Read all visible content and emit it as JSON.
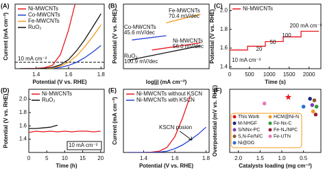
{
  "chart_data": [
    {
      "type": "line",
      "panel_label": "(A)",
      "x_label": "Potential (V vs. RHE)",
      "y_label": "Current (mA cm⁻²)",
      "x": [
        1.3,
        1.4,
        1.45,
        1.5,
        1.55,
        1.6,
        1.65,
        1.7,
        1.75,
        1.8
      ],
      "xlim": [
        1.27,
        1.82
      ],
      "xticks": [
        1.4,
        1.6,
        1.8
      ],
      "ylim": [
        0,
        100
      ],
      "yticks": [],
      "hline": 10,
      "annotations": [
        "10 mA cm⁻²"
      ],
      "legend": "upper left",
      "series": [
        {
          "name": "Ni-MWCNTs",
          "color": "#e8161b",
          "values": [
            0,
            0.5,
            1.5,
            5,
            22,
            60,
            110,
            null,
            null,
            null
          ]
        },
        {
          "name": "Co-MWCNTs",
          "color": "#1f3fd6",
          "values": [
            0,
            0,
            0,
            0.5,
            2,
            5,
            10,
            17,
            26,
            36
          ]
        },
        {
          "name": "Fe-MWCNTs",
          "color": "#f39a1a",
          "values": [
            0,
            0,
            0,
            1,
            4,
            10,
            20,
            34,
            50,
            68
          ]
        },
        {
          "name": "RuO₂",
          "color": "#111111",
          "values": [
            0,
            0,
            0.5,
            2,
            6,
            14,
            28,
            45,
            65,
            85
          ]
        }
      ]
    },
    {
      "type": "line",
      "panel_label": "(B)",
      "x_label": "log|j| (mA cm⁻²)",
      "y_label": "Potential (V vs. RHE)",
      "xlim": [
        0,
        1.5
      ],
      "xticks": [],
      "ylim": [
        1.3,
        1.75
      ],
      "yticks": [],
      "series": [
        {
          "name": "Co-MWCNTs",
          "slope": "45.6 mV/dec",
          "color": "#1f3fd6",
          "x": [
            0.15,
            0.75
          ],
          "values": [
            1.5,
            1.53
          ]
        },
        {
          "name": "Fe-MWCNTs",
          "slope": "70.4 mV/dec",
          "color": "#f39a1a",
          "x": [
            0.75,
            1.35
          ],
          "values": [
            1.62,
            1.68
          ]
        },
        {
          "name": "Ni-MWCNTs",
          "slope": "56.0 mV/dec",
          "color": "#e8161b",
          "x": [
            0.5,
            1.35
          ],
          "values": [
            1.43,
            1.48
          ]
        },
        {
          "name": "RuO₂",
          "slope": "100.9 mV/dec",
          "color": "#111111",
          "x": [
            0.1,
            1.35
          ],
          "values": [
            1.36,
            1.46
          ]
        }
      ]
    },
    {
      "type": "line",
      "panel_label": "(C)",
      "x_label": "Time (s)",
      "y_label": "Potential (V vs. RHE)",
      "x": [
        0,
        450,
        450,
        900,
        900,
        1350,
        1350,
        1800,
        1800,
        2250
      ],
      "xlim": [
        0,
        2300
      ],
      "xticks": [
        0,
        500,
        1000,
        1500,
        2000
      ],
      "ylim": [
        1.38,
        2.07
      ],
      "yticks": [
        {
          "value": 2,
          "label": "2.0"
        },
        1.8,
        1.6,
        1.4
      ],
      "legend": "upper left",
      "annotations": [
        "10 mA cm⁻²",
        "20",
        "50",
        "100",
        "200 mA cm⁻²"
      ],
      "series": [
        {
          "name": "Ni-MWCNTs",
          "color": "#e8161b",
          "values": [
            1.58,
            1.58,
            1.62,
            1.62,
            1.67,
            1.67,
            1.72,
            1.72,
            1.78,
            1.78
          ]
        }
      ]
    },
    {
      "type": "line",
      "panel_label": "(D)",
      "x_label": "Time (h)",
      "y_label": "Potential (V vs. RHE)",
      "xlim": [
        0,
        21
      ],
      "xticks": [
        0,
        5,
        10,
        15,
        20
      ],
      "ylim": [
        1.2,
        2.15
      ],
      "yticks": [
        {
          "value": 2,
          "label": "2.0"
        },
        1.8,
        1.6,
        1.4
      ],
      "legend": "upper left",
      "annotations": [
        "10 mA cm⁻²"
      ],
      "series": [
        {
          "name": "Ni-MWCNTs",
          "color": "#e8161b",
          "x": [
            0,
            2,
            4,
            6,
            8,
            10,
            12,
            14,
            16,
            18,
            20
          ],
          "values": [
            1.5,
            1.52,
            1.51,
            1.52,
            1.51,
            1.52,
            1.51,
            1.52,
            1.52,
            1.51,
            1.52
          ]
        },
        {
          "name": "RuO₂",
          "color": "#111111",
          "x": [
            0,
            2,
            4,
            6,
            8
          ],
          "values": [
            1.56,
            1.56,
            1.57,
            1.58,
            1.61
          ]
        }
      ]
    },
    {
      "type": "line",
      "panel_label": "(E)",
      "x_label": "Potential (V vs. RHE)",
      "y_label": "Current (mA cm⁻²)",
      "x": [
        1.3,
        1.4,
        1.45,
        1.5,
        1.55,
        1.6,
        1.65,
        1.7,
        1.75,
        1.8
      ],
      "xlim": [
        1.27,
        1.82
      ],
      "xticks": [
        1.4,
        1.6,
        1.8
      ],
      "ylim": [
        0,
        100
      ],
      "yticks": [],
      "legend": "upper left",
      "annotations": [
        "KSCN posion"
      ],
      "series": [
        {
          "name": "Ni-MWCNTs without KSCN",
          "color": "#e8161b",
          "values": [
            0,
            0,
            0.5,
            2,
            8,
            25,
            55,
            90,
            null,
            null
          ]
        },
        {
          "name": "Ni-MWCNTs with KSCN",
          "color": "#1f3fd6",
          "values": [
            0,
            0,
            0,
            0.5,
            2,
            6,
            12,
            20,
            29,
            40
          ]
        }
      ]
    },
    {
      "type": "scatter",
      "panel_label": "(F)",
      "x_label": "Catalysts loading (mg cm⁻²)",
      "y_label": "Overpotential (mV vs. RHE)",
      "xlim": [
        2.2,
        0.1
      ],
      "xticks": [
        {
          "value": 2,
          "label": "2.0"
        },
        1.5,
        {
          "value": 1,
          "label": "1.0"
        },
        0.5
      ],
      "ylim": [
        250,
        450
      ],
      "yticks": [],
      "legend": "lower left",
      "series": [
        {
          "name": "This Work",
          "color": "#e8161b",
          "marker": "star",
          "x": [
            0.85
          ],
          "values": [
            425
          ]
        },
        {
          "name": "M-NHGF",
          "color": "#1b2a7a",
          "x": [
            0.35
          ],
          "values": [
            420
          ]
        },
        {
          "name": "S/NNx-PC",
          "color": "#7a3fb0",
          "x": [
            0.3
          ],
          "values": [
            400
          ]
        },
        {
          "name": "S,N-Fe/N/C",
          "color": "#8b5a2b",
          "x": [
            0.25
          ],
          "values": [
            415
          ]
        },
        {
          "name": "Ni@DG",
          "color": "#2a6fd6",
          "x": [
            0.5
          ],
          "values": [
            395
          ]
        },
        {
          "name": "HCM@Ni-N",
          "color": "#f39a1a",
          "x": [
            0.28
          ],
          "values": [
            380
          ]
        },
        {
          "name": "Fe-Nx-C",
          "color": "#2e9a3a",
          "x": [
            0.2
          ],
          "values": [
            395
          ]
        },
        {
          "name": "Fe-N₄/NPC",
          "color": "#9a1e3a",
          "x": [
            0.22
          ],
          "values": [
            370
          ]
        },
        {
          "name": "Fe-UTN",
          "color": "#e87ab8",
          "x": [
            1.4
          ],
          "values": [
            405
          ]
        }
      ]
    }
  ]
}
